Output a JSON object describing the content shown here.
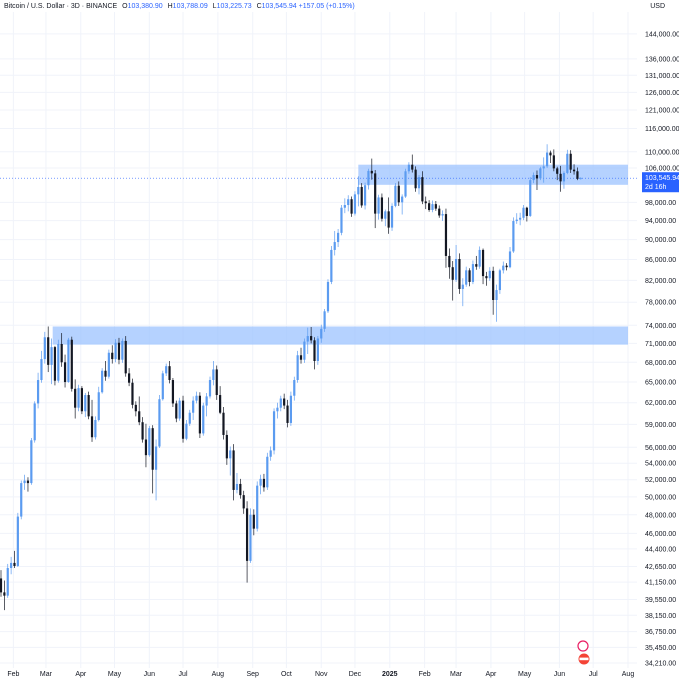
{
  "header": {
    "title": "Bitcoin / U.S. Dollar · 3D · BINANCE",
    "open_label": "O",
    "open": "103,380.90",
    "high_label": "H",
    "high": "103,788.09",
    "low_label": "L",
    "low": "103,225.73",
    "close_label": "C",
    "close": "103,545.94",
    "change": "+157.05 (+0.15%)"
  },
  "currency": "USD",
  "price_badge": {
    "price": "103,545.94",
    "countdown": "2d 16h"
  },
  "colors": {
    "up": "#5b9bf0",
    "down": "#131722",
    "zone": "#9cc3ff",
    "badge": "#2962ff"
  },
  "chart_data": {
    "type": "candlestick",
    "scale": "log",
    "ylim": [
      34210,
      150000
    ],
    "y_ticks": [
      "144,000.00",
      "136,000.00",
      "131,000.00",
      "126,000.00",
      "121,000.00",
      "116,000.00",
      "110,000.00",
      "106,000.00",
      "98,000.00",
      "94,000.00",
      "90,000.00",
      "86,000.00",
      "82,000.00",
      "78,000.00",
      "74,000.00",
      "71,000.00",
      "68,000.00",
      "65,000.00",
      "62,000.00",
      "59,000.00",
      "56,000.00",
      "54,000.00",
      "52,000.00",
      "50,000.00",
      "48,000.00",
      "46,000.00",
      "44,400.00",
      "42,650.00",
      "41,150.00",
      "39,550.00",
      "38,150.00",
      "36,750.00",
      "35,450.00",
      "34,210.00"
    ],
    "x_ticks": [
      "Feb",
      "Mar",
      "Apr",
      "May",
      "Jun",
      "Jul",
      "Aug",
      "Sep",
      "Oct",
      "Nov",
      "Dec",
      "2025",
      "Feb",
      "Mar",
      "Apr",
      "May",
      "Jun",
      "Jul",
      "Aug"
    ],
    "x_tick_dates": [
      "2024-02-01",
      "2024-03-01",
      "2024-04-01",
      "2024-05-01",
      "2024-06-01",
      "2024-07-01",
      "2024-08-01",
      "2024-09-01",
      "2024-10-01",
      "2024-11-01",
      "2024-12-01",
      "2025-01-01",
      "2025-02-01",
      "2025-03-01",
      "2025-04-01",
      "2025-05-01",
      "2025-06-01",
      "2025-07-01",
      "2025-08-01"
    ],
    "zones": [
      {
        "from": "2024-03-07",
        "to": "2025-08-01",
        "low": 70800,
        "high": 73800
      },
      {
        "from": "2024-12-04",
        "to": "2025-08-01",
        "low": 102000,
        "high": 106800
      }
    ],
    "last_price": 103545.94,
    "ohlc_3d": [
      [
        "2024-01-21",
        41500,
        42300,
        39800,
        40200
      ],
      [
        "2024-01-24",
        40200,
        41300,
        38600,
        39900
      ],
      [
        "2024-01-27",
        39900,
        42900,
        39700,
        42500
      ],
      [
        "2024-01-30",
        42500,
        43600,
        41900,
        43000
      ],
      [
        "2024-02-02",
        43000,
        44200,
        42500,
        42700
      ],
      [
        "2024-02-05",
        42700,
        48200,
        42600,
        47800
      ],
      [
        "2024-02-08",
        47800,
        51900,
        47500,
        51600
      ],
      [
        "2024-02-11",
        51600,
        52600,
        50800,
        51900
      ],
      [
        "2024-02-14",
        51900,
        52300,
        50600,
        51600
      ],
      [
        "2024-02-17",
        51600,
        57200,
        51400,
        56900
      ],
      [
        "2024-02-20",
        56900,
        62200,
        56600,
        61900
      ],
      [
        "2024-02-23",
        61900,
        66400,
        61200,
        65300
      ],
      [
        "2024-02-26",
        65300,
        69800,
        64900,
        68500
      ],
      [
        "2024-02-29",
        68500,
        72900,
        67800,
        72000
      ],
      [
        "2024-03-03",
        72000,
        73800,
        66500,
        67600
      ],
      [
        "2024-03-06",
        67600,
        71800,
        64700,
        70400
      ],
      [
        "2024-03-09",
        70400,
        70600,
        64500,
        65200
      ],
      [
        "2024-03-12",
        65200,
        71600,
        64900,
        70900
      ],
      [
        "2024-03-15",
        70900,
        72700,
        67300,
        68000
      ],
      [
        "2024-03-18",
        68000,
        69200,
        64200,
        65000
      ],
      [
        "2024-03-21",
        65000,
        71900,
        64900,
        71600
      ],
      [
        "2024-03-24",
        71600,
        72100,
        63600,
        64000
      ],
      [
        "2024-03-27",
        64000,
        65400,
        59800,
        61300
      ],
      [
        "2024-03-30",
        61300,
        64600,
        60800,
        64100
      ],
      [
        "2024-04-02",
        64100,
        64400,
        60400,
        60800
      ],
      [
        "2024-04-05",
        60800,
        63400,
        60000,
        63100
      ],
      [
        "2024-04-08",
        63100,
        63600,
        59700,
        60100
      ],
      [
        "2024-04-11",
        60100,
        62400,
        56700,
        57300
      ],
      [
        "2024-04-14",
        57300,
        60100,
        57000,
        59600
      ],
      [
        "2024-04-17",
        59600,
        64300,
        59400,
        63500
      ],
      [
        "2024-04-20",
        63500,
        67100,
        63300,
        66700
      ],
      [
        "2024-04-23",
        66700,
        68200,
        65200,
        65800
      ],
      [
        "2024-04-26",
        65800,
        70000,
        65500,
        69500
      ],
      [
        "2024-04-29",
        69500,
        70700,
        67800,
        68500
      ],
      [
        "2024-05-02",
        68500,
        71700,
        68000,
        71100
      ],
      [
        "2024-05-05",
        71100,
        71900,
        67700,
        68400
      ],
      [
        "2024-05-08",
        68400,
        71800,
        67900,
        71400
      ],
      [
        "2024-05-11",
        71400,
        72200,
        65800,
        66300
      ],
      [
        "2024-05-14",
        66300,
        67100,
        64400,
        64900
      ],
      [
        "2024-05-17",
        64900,
        65500,
        61200,
        61700
      ],
      [
        "2024-05-20",
        61700,
        62200,
        60100,
        60800
      ],
      [
        "2024-05-23",
        60800,
        62900,
        58900,
        59300
      ],
      [
        "2024-05-26",
        59300,
        60000,
        56600,
        57000
      ],
      [
        "2024-05-29",
        57000,
        59100,
        53500,
        55000
      ],
      [
        "2024-06-01",
        55000,
        58800,
        54800,
        58500
      ],
      [
        "2024-06-04",
        58500,
        58900,
        50400,
        53200
      ],
      [
        "2024-06-07",
        53200,
        57000,
        49600,
        56100
      ],
      [
        "2024-06-10",
        56100,
        63100,
        55900,
        62500
      ],
      [
        "2024-06-13",
        62500,
        66700,
        62300,
        66300
      ],
      [
        "2024-06-16",
        66300,
        67800,
        65900,
        67400
      ],
      [
        "2024-06-19",
        67400,
        68200,
        64800,
        65300
      ],
      [
        "2024-06-22",
        65300,
        65600,
        61400,
        61900
      ],
      [
        "2024-06-25",
        61900,
        62300,
        59300,
        59800
      ],
      [
        "2024-06-28",
        59800,
        62700,
        59500,
        62300
      ],
      [
        "2024-07-01",
        62300,
        63000,
        56600,
        57100
      ],
      [
        "2024-07-04",
        57100,
        59600,
        56900,
        59100
      ],
      [
        "2024-07-07",
        59100,
        61000,
        58800,
        60600
      ],
      [
        "2024-07-10",
        60600,
        62900,
        59600,
        62300
      ],
      [
        "2024-07-13",
        62300,
        63600,
        61900,
        63000
      ],
      [
        "2024-07-16",
        63000,
        63500,
        57200,
        57800
      ],
      [
        "2024-07-19",
        57800,
        62000,
        57500,
        61600
      ],
      [
        "2024-07-22",
        61600,
        63400,
        60100,
        62900
      ],
      [
        "2024-07-25",
        62900,
        65800,
        62600,
        65300
      ],
      [
        "2024-07-28",
        65300,
        68200,
        64500,
        66900
      ],
      [
        "2024-07-31",
        66900,
        67500,
        62400,
        63100
      ],
      [
        "2024-08-03",
        63100,
        64400,
        60400,
        60600
      ],
      [
        "2024-08-06",
        60600,
        61400,
        57000,
        57600
      ],
      [
        "2024-08-09",
        57600,
        58200,
        53800,
        54600
      ],
      [
        "2024-08-12",
        54600,
        56100,
        52500,
        55600
      ],
      [
        "2024-08-15",
        55600,
        56400,
        49600,
        50800
      ],
      [
        "2024-08-18",
        50800,
        52800,
        50400,
        51500
      ],
      [
        "2024-08-21",
        51500,
        52100,
        49800,
        50200
      ],
      [
        "2024-08-24",
        50200,
        50700,
        48100,
        48700
      ],
      [
        "2024-08-27",
        48700,
        49500,
        41100,
        43200
      ],
      [
        "2024-08-30",
        43200,
        48700,
        43000,
        48000
      ],
      [
        "2024-09-02",
        48000,
        48600,
        45800,
        46500
      ],
      [
        "2024-09-05",
        46500,
        51800,
        46200,
        51300
      ],
      [
        "2024-09-08",
        51300,
        52600,
        50300,
        52100
      ],
      [
        "2024-09-11",
        52100,
        52700,
        50600,
        51100
      ],
      [
        "2024-09-14",
        51100,
        55300,
        50800,
        54800
      ],
      [
        "2024-09-17",
        54800,
        56100,
        54300,
        55600
      ],
      [
        "2024-09-20",
        55600,
        61200,
        55100,
        60800
      ],
      [
        "2024-09-23",
        60800,
        62000,
        59800,
        61300
      ],
      [
        "2024-09-26",
        61300,
        63000,
        60800,
        62600
      ],
      [
        "2024-09-29",
        62600,
        63300,
        61100,
        61600
      ],
      [
        "2024-10-02",
        61600,
        62400,
        58600,
        59200
      ],
      [
        "2024-10-05",
        59200,
        63600,
        58800,
        63000
      ],
      [
        "2024-10-08",
        63000,
        65800,
        62300,
        65300
      ],
      [
        "2024-10-11",
        65300,
        69800,
        64900,
        69100
      ],
      [
        "2024-10-14",
        69100,
        70300,
        67800,
        68400
      ],
      [
        "2024-10-17",
        68400,
        71800,
        67900,
        71300
      ],
      [
        "2024-10-20",
        71300,
        73600,
        69300,
        72200
      ],
      [
        "2024-10-23",
        72200,
        73700,
        71000,
        71500
      ],
      [
        "2024-10-26",
        71500,
        72000,
        66900,
        68200
      ],
      [
        "2024-10-29",
        68200,
        72200,
        67600,
        71800
      ],
      [
        "2024-11-01",
        71800,
        74100,
        71100,
        73400
      ],
      [
        "2024-11-04",
        73400,
        76800,
        72900,
        76400
      ],
      [
        "2024-11-07",
        76400,
        82200,
        76100,
        81700
      ],
      [
        "2024-11-10",
        81700,
        88700,
        81300,
        87900
      ],
      [
        "2024-11-13",
        87900,
        91800,
        86800,
        89500
      ],
      [
        "2024-11-16",
        89500,
        92200,
        88500,
        91400
      ],
      [
        "2024-11-19",
        91400,
        97400,
        90900,
        96800
      ],
      [
        "2024-11-22",
        96800,
        98900,
        95600,
        97400
      ],
      [
        "2024-11-25",
        97400,
        99600,
        96000,
        98700
      ],
      [
        "2024-11-28",
        98700,
        99300,
        94800,
        95500
      ],
      [
        "2024-12-01",
        95500,
        100500,
        95100,
        99800
      ],
      [
        "2024-12-04",
        99800,
        104000,
        97100,
        101500
      ],
      [
        "2024-12-07",
        101500,
        102400,
        96800,
        97300
      ],
      [
        "2024-12-10",
        97300,
        102500,
        96400,
        101900
      ],
      [
        "2024-12-13",
        101900,
        105800,
        100900,
        105300
      ],
      [
        "2024-12-16",
        105300,
        108300,
        103200,
        104700
      ],
      [
        "2024-12-19",
        104700,
        105500,
        92400,
        95500
      ],
      [
        "2024-12-22",
        95500,
        99700,
        94200,
        99100
      ],
      [
        "2024-12-25",
        99100,
        100000,
        93800,
        94400
      ],
      [
        "2024-12-28",
        94400,
        96400,
        92800,
        96000
      ],
      [
        "2024-12-31",
        96000,
        99100,
        91200,
        92500
      ],
      [
        "2025-01-03",
        92500,
        97800,
        91800,
        97200
      ],
      [
        "2025-01-06",
        97200,
        102400,
        96900,
        101800
      ],
      [
        "2025-01-09",
        101800,
        102800,
        97200,
        98000
      ],
      [
        "2025-01-12",
        98000,
        99800,
        95300,
        99300
      ],
      [
        "2025-01-15",
        99300,
        105800,
        99000,
        105200
      ],
      [
        "2025-01-18",
        105200,
        107400,
        104600,
        106800
      ],
      [
        "2025-01-21",
        106800,
        109300,
        104900,
        105600
      ],
      [
        "2025-01-24",
        105600,
        106400,
        100400,
        101200
      ],
      [
        "2025-01-27",
        101200,
        104300,
        99800,
        103800
      ],
      [
        "2025-01-30",
        103800,
        105200,
        97600,
        98200
      ],
      [
        "2025-02-02",
        98200,
        99300,
        96500,
        97800
      ],
      [
        "2025-02-05",
        97800,
        98500,
        95900,
        96300
      ],
      [
        "2025-02-08",
        96300,
        98400,
        95800,
        97600
      ],
      [
        "2025-02-11",
        97600,
        98300,
        96100,
        96600
      ],
      [
        "2025-02-14",
        96600,
        97300,
        94600,
        95100
      ],
      [
        "2025-02-17",
        95100,
        96200,
        93900,
        95400
      ],
      [
        "2025-02-20",
        95400,
        96600,
        84400,
        86700
      ],
      [
        "2025-02-23",
        86700,
        88200,
        82300,
        84500
      ],
      [
        "2025-02-26",
        84500,
        85700,
        78300,
        82100
      ],
      [
        "2025-03-01",
        82100,
        88900,
        81700,
        86100
      ],
      [
        "2025-03-04",
        86100,
        87200,
        79500,
        80400
      ],
      [
        "2025-03-07",
        80400,
        82400,
        77300,
        81200
      ],
      [
        "2025-03-10",
        81200,
        84600,
        80800,
        83900
      ],
      [
        "2025-03-13",
        83900,
        84300,
        80900,
        81700
      ],
      [
        "2025-03-16",
        81700,
        85800,
        81300,
        85100
      ],
      [
        "2025-03-19",
        85100,
        86700,
        84000,
        84600
      ],
      [
        "2025-03-22",
        84600,
        88600,
        84200,
        87900
      ],
      [
        "2025-03-25",
        87900,
        88200,
        81300,
        82800
      ],
      [
        "2025-03-28",
        82800,
        83600,
        81000,
        82400
      ],
      [
        "2025-03-31",
        82400,
        84500,
        81900,
        83800
      ],
      [
        "2025-04-03",
        83800,
        84600,
        75800,
        78400
      ],
      [
        "2025-04-06",
        78400,
        81200,
        74600,
        80200
      ],
      [
        "2025-04-09",
        80200,
        84200,
        79500,
        83900
      ],
      [
        "2025-04-12",
        83900,
        85600,
        83300,
        84800
      ],
      [
        "2025-04-15",
        84800,
        85300,
        83900,
        84500
      ],
      [
        "2025-04-18",
        84500,
        88500,
        84300,
        87600
      ],
      [
        "2025-04-21",
        87600,
        94700,
        87300,
        93900
      ],
      [
        "2025-04-24",
        93900,
        95600,
        93300,
        94200
      ],
      [
        "2025-04-27",
        94200,
        95700,
        93000,
        94600
      ],
      [
        "2025-04-30",
        94600,
        97400,
        94100,
        96800
      ],
      [
        "2025-05-03",
        96800,
        97000,
        93800,
        95000
      ],
      [
        "2025-05-06",
        95000,
        103800,
        94800,
        103100
      ],
      [
        "2025-05-09",
        103100,
        104900,
        102400,
        104300
      ],
      [
        "2025-05-12",
        104300,
        105400,
        100800,
        103500
      ],
      [
        "2025-05-15",
        103500,
        106300,
        103100,
        105900
      ],
      [
        "2025-05-18",
        105900,
        108600,
        102500,
        106400
      ],
      [
        "2025-05-21",
        106400,
        111900,
        106000,
        109800
      ],
      [
        "2025-05-24",
        109800,
        110300,
        107200,
        109100
      ],
      [
        "2025-05-27",
        109100,
        110600,
        105200,
        105900
      ],
      [
        "2025-05-30",
        105900,
        106300,
        103100,
        104600
      ],
      [
        "2025-06-02",
        104600,
        106500,
        100400,
        102800
      ],
      [
        "2025-06-05",
        102800,
        105200,
        101100,
        104800
      ],
      [
        "2025-06-08",
        104800,
        110500,
        104500,
        109500
      ],
      [
        "2025-06-11",
        109500,
        110400,
        104800,
        105600
      ],
      [
        "2025-06-14",
        105600,
        106900,
        104400,
        105200
      ],
      [
        "2025-06-17",
        105200,
        106100,
        103100,
        103400
      ],
      [
        "2025-06-20",
        103400,
        103800,
        103200,
        103546
      ]
    ]
  }
}
